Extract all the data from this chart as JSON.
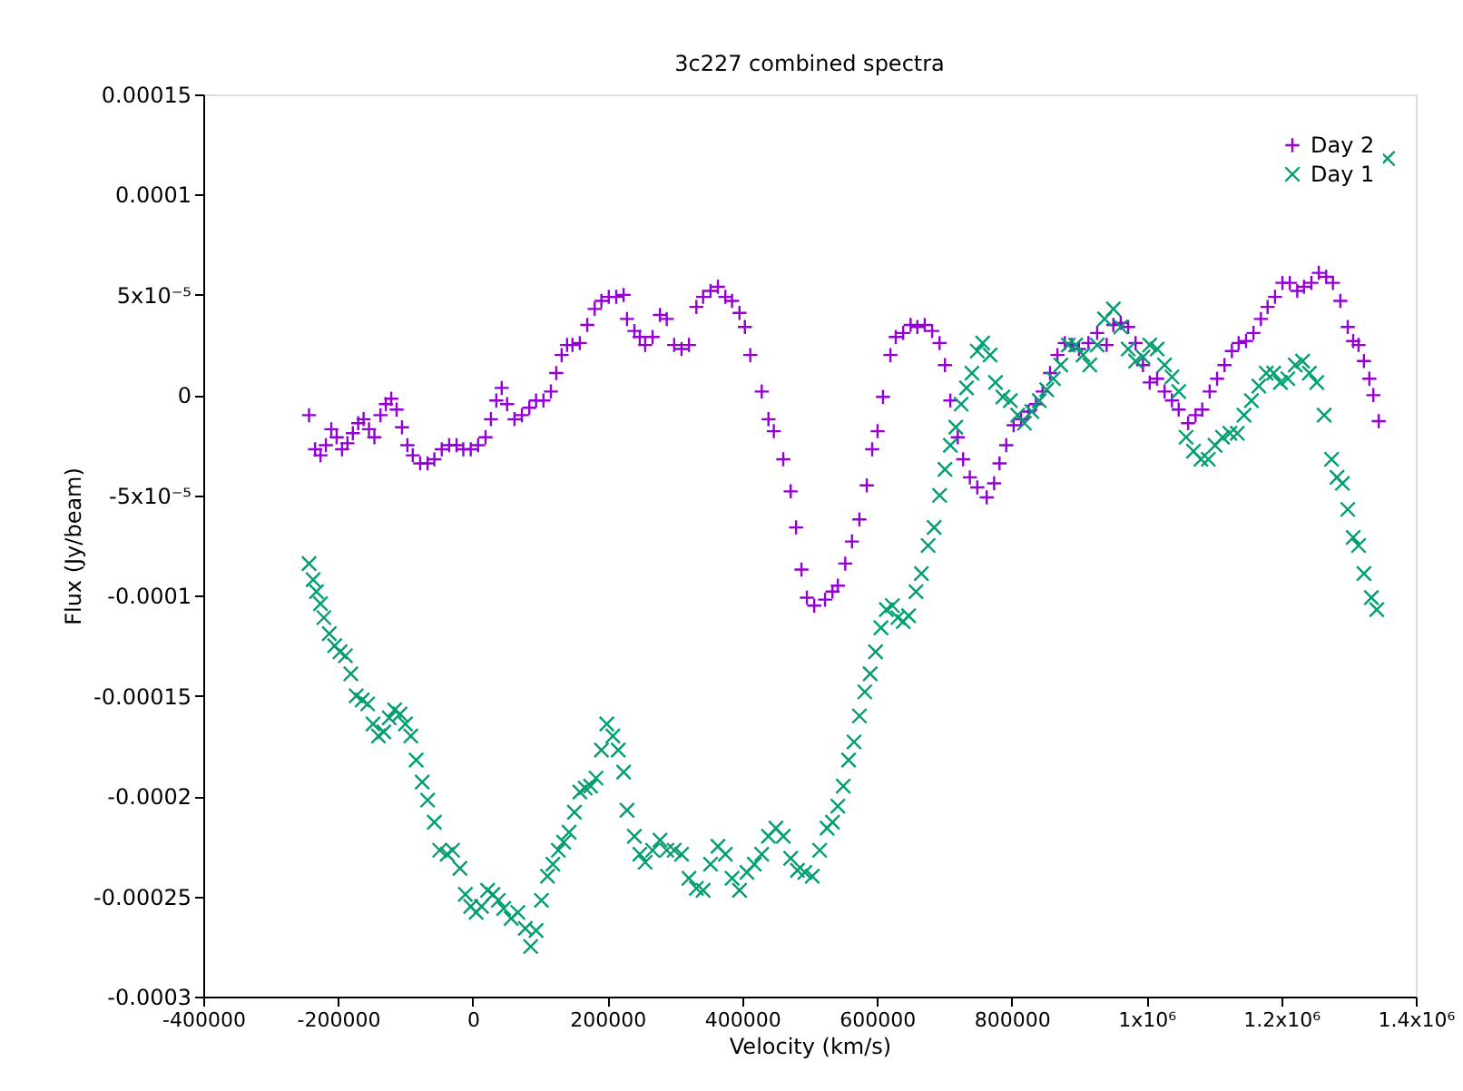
{
  "chart_data": {
    "type": "scatter",
    "title": "3c227 combined spectra",
    "xlabel": "Velocity (km/s)",
    "ylabel": "Flux (Jy/beam)",
    "xlim": [
      -400000,
      1400000
    ],
    "ylim": [
      -0.0003,
      0.00015
    ],
    "xticks": [
      -400000,
      -200000,
      0,
      200000,
      400000,
      600000,
      800000,
      {
        "value": 1000000,
        "label": "1x10⁶"
      },
      {
        "value": 1200000,
        "label": "1.2x10⁶"
      },
      {
        "value": 1400000,
        "label": "1.4x10⁶"
      }
    ],
    "yticks": [
      -0.0003,
      -0.00025,
      -0.0002,
      -0.00015,
      -0.0001,
      {
        "value": -5e-05,
        "label": "-5x10⁻⁵"
      },
      0,
      {
        "value": 5e-05,
        "label": "5x10⁻⁵"
      },
      0.0001,
      0.00015
    ],
    "grid": false,
    "legend": "top right",
    "series": [
      {
        "name": "Day 2",
        "color": "#9400d3",
        "marker": "cross",
        "x": [
          -243000,
          -234000,
          -226000,
          -218000,
          -210000,
          -202000,
          -194000,
          -186000,
          -178000,
          -170000,
          -162000,
          -154000,
          -146000,
          -137000,
          -129000,
          -121000,
          -113000,
          -105000,
          -97000,
          -89000,
          -78000,
          -67000,
          -57000,
          -46000,
          -35000,
          -24000,
          -14000,
          -3000,
          8000,
          19000,
          27000,
          35000,
          43000,
          51000,
          62000,
          73000,
          84000,
          94000,
          105000,
          116000,
          124000,
          132000,
          140000,
          148000,
          159000,
          170000,
          181000,
          191000,
          202000,
          213000,
          224000,
          229000,
          240000,
          248000,
          256000,
          267000,
          278000,
          288000,
          299000,
          310000,
          321000,
          332000,
          342000,
          353000,
          364000,
          375000,
          385000,
          396000,
          404000,
          412000,
          429000,
          439000,
          447000,
          461000,
          472000,
          480000,
          488000,
          496000,
          507000,
          523000,
          534000,
          542000,
          553000,
          563000,
          574000,
          585000,
          593000,
          601000,
          609000,
          620000,
          628000,
          639000,
          650000,
          660000,
          671000,
          682000,
          693000,
          701000,
          709000,
          720000,
          728000,
          738000,
          749000,
          763000,
          774000,
          782000,
          792000,
          803000,
          814000,
          825000,
          836000,
          846000,
          857000,
          868000,
          879000,
          889000,
          900000,
          914000,
          927000,
          941000,
          951000,
          962000,
          973000,
          984000,
          995000,
          1005000,
          1016000,
          1027000,
          1038000,
          1048000,
          1062000,
          1073000,
          1083000,
          1094000,
          1105000,
          1116000,
          1127000,
          1137000,
          1148000,
          1159000,
          1170000,
          1180000,
          1191000,
          1202000,
          1213000,
          1224000,
          1234000,
          1245000,
          1256000,
          1267000,
          1277000,
          1288000,
          1299000,
          1307000,
          1315000,
          1323000,
          1331000,
          1337000,
          1345000
        ],
        "values": [
          -1e-05,
          -2.7e-05,
          -3e-05,
          -2.5e-05,
          -1.7e-05,
          -2.1e-05,
          -2.7e-05,
          -2.4e-05,
          -1.9e-05,
          -1.4e-05,
          -1.2e-05,
          -1.7e-05,
          -2.1e-05,
          -1e-05,
          -4.5e-06,
          -1.8e-06,
          -7.2e-06,
          -1.6e-05,
          -2.5e-05,
          -3e-05,
          -3.4e-05,
          -3.4e-05,
          -3.2e-05,
          -2.7e-05,
          -2.5e-05,
          -2.5e-05,
          -2.7e-05,
          -2.7e-05,
          -2.5e-05,
          -2.1e-05,
          -1.2e-05,
          -2.7e-06,
          3.6e-06,
          -4.5e-06,
          -1.2e-05,
          -1e-05,
          -6.3e-06,
          -2.7e-06,
          -2.7e-06,
          1.8e-06,
          1.1e-05,
          2e-05,
          2.5e-05,
          2.5e-05,
          2.6e-05,
          3.5e-05,
          4.3e-05,
          4.7e-05,
          4.9e-05,
          4.9e-05,
          5e-05,
          3.8e-05,
          3.2e-05,
          2.9e-05,
          2.5e-05,
          2.9e-05,
          4e-05,
          3.8e-05,
          2.5e-05,
          2.3e-05,
          2.5e-05,
          4.4e-05,
          4.9e-05,
          5.2e-05,
          5.4e-05,
          4.9e-05,
          4.7e-05,
          4.1e-05,
          3.4e-05,
          2e-05,
          1.8e-06,
          -1.2e-05,
          -1.8e-05,
          -3.2e-05,
          -4.8e-05,
          -6.6e-05,
          -8.7e-05,
          -0.000101,
          -0.000105,
          -0.000102,
          -9.8e-05,
          -9.5e-05,
          -8.4e-05,
          -7.3e-05,
          -6.2e-05,
          -4.5e-05,
          -2.7e-05,
          -1.8e-05,
          -9e-07,
          2e-05,
          2.9e-05,
          3.1e-05,
          3.5e-05,
          3.4e-05,
          3.5e-05,
          3.2e-05,
          2.6e-05,
          1.5e-05,
          -2.7e-06,
          -2.1e-05,
          -3.2e-05,
          -4.1e-05,
          -4.6e-05,
          -5.1e-05,
          -4.4e-05,
          -3.4e-05,
          -2.5e-05,
          -1.5e-05,
          -1.2e-05,
          -8.2e-06,
          -4.5e-06,
          1.8e-06,
          1.1e-05,
          2e-05,
          2.6e-05,
          2.5e-05,
          2.3e-05,
          2.6e-05,
          3.1e-05,
          2.5e-05,
          3.5e-05,
          3.6e-05,
          3.4e-05,
          2.6e-05,
          1.5e-05,
          6.3e-06,
          8.2e-06,
          1.8e-06,
          -2.7e-06,
          -7.2e-06,
          -1.4e-05,
          -1e-05,
          -7.2e-06,
          1.8e-06,
          8.2e-06,
          1.5e-05,
          2.2e-05,
          2.6e-05,
          2.7e-05,
          3.1e-05,
          3.8e-05,
          4.4e-05,
          4.9e-05,
          5.6e-05,
          5.6e-05,
          5.2e-05,
          5.4e-05,
          5.6e-05,
          6.1e-05,
          5.9e-05,
          5.6e-05,
          4.7e-05,
          3.4e-05,
          2.7e-05,
          2.5e-05,
          1.7e-05,
          8.2e-06,
          0,
          -1.3e-05
        ]
      },
      {
        "name": "Day 1",
        "color": "#009e73",
        "marker": "x",
        "x": [
          -243000,
          -237000,
          -232000,
          -226000,
          -221000,
          -213000,
          -205000,
          -197000,
          -189000,
          -181000,
          -173000,
          -164000,
          -156000,
          -148000,
          -140000,
          -132000,
          -124000,
          -116000,
          -108000,
          -100000,
          -92000,
          -84000,
          -75000,
          -67000,
          -57000,
          -49000,
          -38000,
          -30000,
          -19000,
          -11000,
          -3000,
          5000,
          13000,
          22000,
          30000,
          38000,
          46000,
          57000,
          67000,
          78000,
          86000,
          94000,
          102000,
          111000,
          119000,
          127000,
          135000,
          143000,
          151000,
          159000,
          167000,
          175000,
          183000,
          191000,
          199000,
          208000,
          216000,
          224000,
          229000,
          240000,
          248000,
          256000,
          267000,
          278000,
          288000,
          299000,
          310000,
          321000,
          332000,
          342000,
          353000,
          364000,
          375000,
          385000,
          396000,
          407000,
          418000,
          429000,
          439000,
          450000,
          461000,
          472000,
          482000,
          493000,
          504000,
          515000,
          526000,
          534000,
          542000,
          550000,
          558000,
          566000,
          574000,
          582000,
          590000,
          598000,
          606000,
          614000,
          623000,
          631000,
          639000,
          647000,
          658000,
          666000,
          676000,
          685000,
          693000,
          701000,
          709000,
          717000,
          725000,
          733000,
          741000,
          749000,
          757000,
          768000,
          776000,
          787000,
          798000,
          809000,
          819000,
          830000,
          841000,
          852000,
          862000,
          873000,
          884000,
          895000,
          906000,
          916000,
          927000,
          938000,
          951000,
          962000,
          973000,
          984000,
          995000,
          1005000,
          1016000,
          1027000,
          1038000,
          1048000,
          1059000,
          1070000,
          1081000,
          1092000,
          1102000,
          1113000,
          1124000,
          1135000,
          1145000,
          1156000,
          1167000,
          1178000,
          1189000,
          1199000,
          1210000,
          1221000,
          1232000,
          1242000,
          1253000,
          1264000,
          1275000,
          1283000,
          1291000,
          1299000,
          1307000,
          1315000,
          1323000,
          1334000,
          1342000,
          1358000
        ],
        "values": [
          -8.4e-05,
          -9.2e-05,
          -9.8e-05,
          -0.000104,
          -0.000111,
          -0.000119,
          -0.000125,
          -0.000128,
          -0.00013,
          -0.000139,
          -0.00015,
          -0.000152,
          -0.000154,
          -0.000164,
          -0.00017,
          -0.000168,
          -0.000161,
          -0.000157,
          -0.000159,
          -0.000164,
          -0.00017,
          -0.000182,
          -0.000193,
          -0.000202,
          -0.000213,
          -0.000227,
          -0.000229,
          -0.000227,
          -0.000236,
          -0.000249,
          -0.000255,
          -0.000258,
          -0.000255,
          -0.000247,
          -0.000249,
          -0.000252,
          -0.000256,
          -0.000261,
          -0.000258,
          -0.000266,
          -0.000275,
          -0.000267,
          -0.000252,
          -0.00024,
          -0.000234,
          -0.000227,
          -0.000223,
          -0.000218,
          -0.000208,
          -0.000198,
          -0.000196,
          -0.000195,
          -0.000191,
          -0.000177,
          -0.000164,
          -0.00017,
          -0.000177,
          -0.000188,
          -0.000207,
          -0.00022,
          -0.000229,
          -0.000233,
          -0.000227,
          -0.000222,
          -0.000227,
          -0.000227,
          -0.000229,
          -0.000241,
          -0.000246,
          -0.000247,
          -0.000234,
          -0.000225,
          -0.000229,
          -0.000241,
          -0.000247,
          -0.000238,
          -0.000234,
          -0.000229,
          -0.00022,
          -0.000216,
          -0.00022,
          -0.000231,
          -0.000237,
          -0.000238,
          -0.00024,
          -0.000227,
          -0.000216,
          -0.000213,
          -0.000205,
          -0.000195,
          -0.000182,
          -0.000173,
          -0.00016,
          -0.000148,
          -0.000139,
          -0.000128,
          -0.000116,
          -0.000107,
          -0.000105,
          -0.000111,
          -0.000113,
          -0.00011,
          -9.8e-05,
          -8.9e-05,
          -7.5e-05,
          -6.6e-05,
          -5e-05,
          -3.7e-05,
          -2.5e-05,
          -1.6e-05,
          -4.5e-06,
          3.6e-06,
          1.1e-05,
          2.2e-05,
          2.6e-05,
          2e-05,
          6.3e-06,
          -9e-07,
          -2.7e-06,
          -1e-05,
          -1.4e-05,
          -8.2e-06,
          -2.7e-06,
          2.7e-06,
          8.2e-06,
          1.5e-05,
          2.5e-05,
          2.5e-05,
          2e-05,
          1.5e-05,
          2.5e-05,
          3.8e-05,
          4.3e-05,
          3.4e-05,
          2.3e-05,
          1.7e-05,
          1.9e-05,
          2.5e-05,
          2.3e-05,
          1.5e-05,
          9.1e-06,
          1.8e-06,
          -2.1e-05,
          -2.8e-05,
          -3.2e-05,
          -3.2e-05,
          -2.5e-05,
          -2.1e-05,
          -1.9e-05,
          -1.9e-05,
          -1e-05,
          -2.7e-06,
          4.5e-06,
          1.1e-05,
          1.1e-05,
          6.3e-06,
          8.2e-06,
          1.5e-05,
          1.7e-05,
          1.1e-05,
          6.3e-06,
          -1e-05,
          -3.2e-05,
          -4.1e-05,
          -4.4e-05,
          -5.7e-05,
          -7.1e-05,
          -7.5e-05,
          -8.9e-05,
          -0.000101,
          -0.000107,
          0.000118
        ]
      }
    ]
  }
}
